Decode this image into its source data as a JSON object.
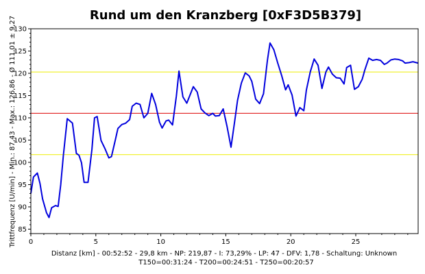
{
  "chart_data": {
    "type": "line",
    "title": "Rund um den Kranzberg [0xF3D5B379]",
    "ylabel": "Trittfrequenz [U/min] - Min.: 87,43 - Max.: 126,86 - Ø 111,01 ± 9,27",
    "xlabel_line1": "Distanz [km] - 00:52:52 - 29,8 km - NP: 219,87 - I: 73,29% - LP: 47 - DFV: 1,78 - Schaltung: Unknown",
    "xlabel_line2": "T150=00:31:24 - T200=00:24:51 - T250=00:20:57",
    "xlim": [
      0,
      29.8
    ],
    "ylim": [
      84,
      130
    ],
    "x_ticks": [
      0,
      5,
      10,
      15,
      20,
      25
    ],
    "y_ticks": [
      85,
      90,
      95,
      100,
      105,
      110,
      115,
      120,
      125,
      130
    ],
    "grid": false,
    "reference_lines": [
      {
        "y": 111.01,
        "color": "#dd0000"
      },
      {
        "y": 120.28,
        "color": "#eeee00"
      },
      {
        "y": 101.74,
        "color": "#eeee00"
      }
    ],
    "series": [
      {
        "color": "#0000dd",
        "x": [
          0.0,
          0.2,
          0.5,
          0.7,
          0.9,
          1.2,
          1.4,
          1.6,
          1.9,
          2.1,
          2.3,
          2.5,
          2.8,
          3.2,
          3.5,
          3.7,
          3.9,
          4.1,
          4.4,
          4.7,
          4.9,
          5.1,
          5.4,
          5.7,
          6.0,
          6.2,
          6.5,
          6.7,
          7.0,
          7.3,
          7.6,
          7.8,
          8.1,
          8.4,
          8.7,
          9.0,
          9.3,
          9.6,
          9.9,
          10.1,
          10.4,
          10.6,
          10.9,
          11.2,
          11.4,
          11.7,
          12.0,
          12.3,
          12.5,
          12.8,
          13.1,
          13.4,
          13.7,
          14.0,
          14.2,
          14.5,
          14.8,
          15.1,
          15.4,
          15.7,
          15.9,
          16.2,
          16.5,
          16.8,
          17.0,
          17.3,
          17.6,
          17.9,
          18.2,
          18.4,
          18.7,
          19.0,
          19.3,
          19.6,
          19.8,
          20.1,
          20.4,
          20.7,
          21.0,
          21.2,
          21.5,
          21.8,
          22.1,
          22.4,
          22.7,
          22.9,
          23.2,
          23.5,
          23.8,
          24.1,
          24.3,
          24.6,
          24.9,
          25.2,
          25.5,
          25.7,
          26.0,
          26.3,
          26.6,
          26.9,
          27.2,
          27.4,
          27.7,
          28.0,
          28.3,
          28.6,
          28.8,
          29.1,
          29.4,
          29.8
        ],
        "values": [
          93.0,
          96.7,
          97.6,
          95.3,
          91.8,
          88.7,
          87.6,
          89.8,
          90.3,
          90.1,
          95.0,
          101.5,
          109.8,
          108.8,
          102.0,
          101.6,
          99.9,
          95.5,
          95.5,
          102.9,
          110.0,
          110.3,
          104.9,
          103.1,
          101.0,
          101.3,
          105.0,
          107.6,
          108.5,
          108.8,
          109.6,
          112.6,
          113.3,
          113.0,
          110.0,
          111.0,
          115.5,
          113.0,
          109.0,
          107.7,
          109.3,
          109.5,
          108.4,
          114.9,
          120.5,
          114.7,
          113.3,
          115.5,
          117.0,
          115.8,
          112.0,
          111.1,
          110.5,
          111.0,
          110.4,
          110.5,
          112.0,
          108.0,
          103.4,
          109.6,
          113.9,
          117.8,
          120.1,
          119.4,
          118.2,
          114.2,
          113.2,
          115.4,
          122.9,
          126.8,
          125.3,
          122.3,
          119.5,
          116.3,
          117.4,
          115.1,
          110.4,
          112.3,
          111.6,
          116.2,
          120.3,
          123.2,
          121.8,
          116.6,
          120.3,
          121.4,
          119.8,
          119.0,
          118.9,
          117.6,
          121.3,
          121.8,
          116.4,
          117.0,
          118.7,
          120.8,
          123.4,
          122.9,
          123.1,
          122.9,
          122.0,
          122.3,
          123.0,
          123.2,
          123.1,
          122.8,
          122.3,
          122.4,
          122.6,
          122.3
        ]
      }
    ]
  }
}
